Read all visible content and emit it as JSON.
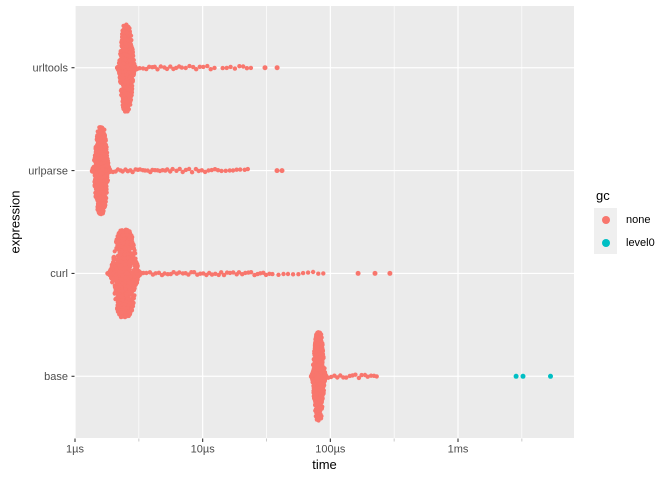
{
  "figure": {
    "kind": "benchmark-beeswarm-plot",
    "description": "Microbenchmark timing distributions per expression, log time axis"
  },
  "colors": {
    "none": "#F8766D",
    "level0": "#00BFC4",
    "panel": "#EBEBEB",
    "grid": "#FFFFFF",
    "axis_text": "#4D4D4D",
    "tick": "#333333",
    "minor_tick": "#C9C9C9",
    "title_text": "#000000",
    "legend_key": "#EFEFEF"
  },
  "axes": {
    "x": {
      "label": "time",
      "scale": "log10",
      "ticks": [
        {
          "us": 1,
          "label": "1µs"
        },
        {
          "us": 10,
          "label": "10µs"
        },
        {
          "us": 100,
          "label": "100µs"
        },
        {
          "us": 1000,
          "label": "1ms"
        }
      ],
      "minor_us": [
        3.1623,
        31.623,
        316.23,
        3162.3
      ],
      "range_us": [
        1,
        8100
      ]
    },
    "y": {
      "label": "expression",
      "categories": [
        "urltools",
        "urlparse",
        "curl",
        "base"
      ]
    }
  },
  "legend": {
    "title": "gc",
    "entries": [
      {
        "label": "none",
        "color": "#F8766D"
      },
      {
        "label": "level0",
        "color": "#00BFC4"
      }
    ]
  },
  "chart_data": {
    "type": "scatter",
    "subtype": "beeswarm",
    "title": "",
    "xlabel": "time",
    "ylabel": "expression",
    "x_unit": "µs",
    "log_x": true,
    "x_range_us": [
      1,
      8100
    ],
    "categories": [
      "urltools",
      "urlparse",
      "curl",
      "base"
    ],
    "grid": "on",
    "legend_position": "right",
    "series": [
      {
        "expression": "urltools",
        "gc": "none",
        "cluster": {
          "mode_us": 2.53,
          "sigma_decades": 0.042,
          "n": 600,
          "half_height_frac": 0.43
        },
        "tail_runs": [
          {
            "from_us": 2.75,
            "to_us": 4.7,
            "n": 11
          },
          {
            "from_us": 5.0,
            "to_us": 6.9,
            "n": 7
          },
          {
            "from_us": 7.4,
            "to_us": 12.3,
            "n": 9
          },
          {
            "from_us": 14.4,
            "to_us": 24.0,
            "n": 8
          }
        ],
        "outliers_us": [
          30.8,
          38.3
        ]
      },
      {
        "expression": "urlparse",
        "gc": "none",
        "cluster": {
          "mode_us": 1.6,
          "sigma_decades": 0.042,
          "n": 600,
          "half_height_frac": 0.43
        },
        "tail_runs": [
          {
            "from_us": 1.9,
            "to_us": 5.8,
            "n": 26
          },
          {
            "from_us": 6.2,
            "to_us": 12.5,
            "n": 13
          },
          {
            "from_us": 13.2,
            "to_us": 22.7,
            "n": 9
          }
        ],
        "outliers_us": [
          38.2,
          41.8
        ]
      },
      {
        "expression": "curl",
        "gc": "none",
        "cluster": {
          "mode_us": 2.45,
          "sigma_decades": 0.075,
          "n": 850,
          "half_height_frac": 0.43
        },
        "tail_runs": [
          {
            "from_us": 3.1,
            "to_us": 35.0,
            "n": 46
          },
          {
            "from_us": 39.0,
            "to_us": 88.0,
            "n": 10
          }
        ],
        "outliers_us": [
          165,
          224,
          293
        ]
      },
      {
        "expression": "base",
        "gc": "none",
        "cluster": {
          "mode_us": 81,
          "sigma_decades": 0.034,
          "n": 600,
          "half_height_frac": 0.43
        },
        "tail_runs": [
          {
            "from_us": 91,
            "to_us": 232,
            "n": 18
          }
        ],
        "outliers_us": []
      },
      {
        "expression": "base",
        "gc": "level0",
        "cluster": null,
        "tail_runs": [],
        "outliers_us": [
          2850,
          3230,
          5300
        ]
      }
    ]
  }
}
